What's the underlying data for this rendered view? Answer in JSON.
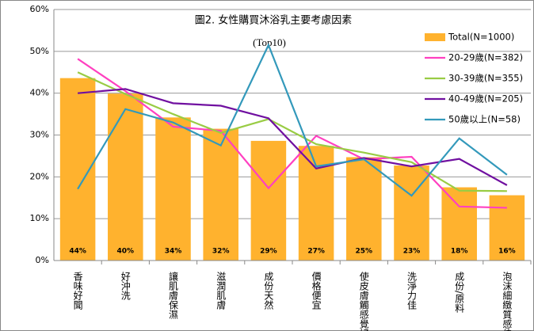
{
  "chart_data": {
    "type": "bar_line",
    "title": "圖2. 女性購買沐浴乳主要考慮因素",
    "subtitle": "(Top10)",
    "categories": [
      "香味好聞",
      "好沖洗",
      "讓肌膚保濕",
      "滋潤肌膚",
      "成份天然",
      "價格便宜",
      "使皮膚觸感覺好",
      "洗淨力佳",
      "成份/原料",
      "泡沫細緻質感佳"
    ],
    "ylim": [
      0,
      60
    ],
    "yticks": [
      {
        "value": 0,
        "label": "0%"
      },
      {
        "value": 10,
        "label": "10%"
      },
      {
        "value": 20,
        "label": "20%"
      },
      {
        "value": 30,
        "label": "30%"
      },
      {
        "value": 40,
        "label": "40%"
      },
      {
        "value": 50,
        "label": "50%"
      },
      {
        "value": 60,
        "label": "60%"
      }
    ],
    "grid": true,
    "legend": "upper right",
    "series": [
      {
        "name": "Total(N=1000)",
        "kind": "bar",
        "color": "#FFB22E",
        "values": [
          43.6,
          39.9,
          34.2,
          31.5,
          28.6,
          27.4,
          24.7,
          22.7,
          17.5,
          15.6
        ],
        "value_labels": [
          "44%",
          "40%",
          "34%",
          "32%",
          "29%",
          "27%",
          "25%",
          "23%",
          "18%",
          "16%"
        ]
      },
      {
        "name": "20-29歲(N=382)",
        "kind": "line",
        "color": "#FF40C0",
        "values": [
          48.2,
          40.5,
          32,
          31,
          17.3,
          29.8,
          24.2,
          24.8,
          12.9,
          12.6
        ]
      },
      {
        "name": "30-39歲(N=355)",
        "kind": "line",
        "color": "#99CC44",
        "values": [
          45,
          39.8,
          35,
          30.5,
          33.8,
          27.8,
          25.8,
          23.5,
          16.7,
          16.6
        ]
      },
      {
        "name": "40-49歲(N=205)",
        "kind": "line",
        "color": "#7010A0",
        "values": [
          40,
          41,
          37.6,
          37,
          34,
          22,
          24.5,
          22.5,
          24.3,
          18
        ]
      },
      {
        "name": "50歲以上(N=58)",
        "kind": "line",
        "color": "#3399BB",
        "values": [
          17.1,
          36.2,
          33,
          27.5,
          51.5,
          22.5,
          24.2,
          15.5,
          29.2,
          20.5
        ]
      }
    ]
  }
}
